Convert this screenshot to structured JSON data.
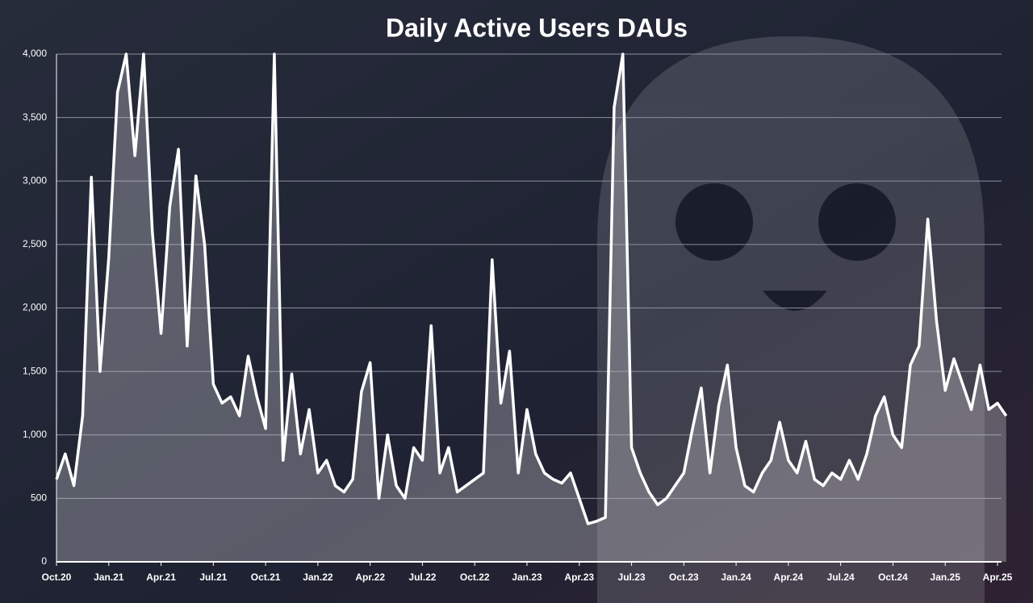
{
  "chart_data": {
    "type": "area",
    "title": "Daily Active Users DAUs",
    "categories": [
      "Oct.20",
      null,
      null,
      null,
      null,
      null,
      "Jan.21",
      null,
      null,
      null,
      null,
      null,
      "Apr.21",
      null,
      null,
      null,
      null,
      null,
      "Jul.21",
      null,
      null,
      null,
      null,
      null,
      "Oct.21",
      null,
      null,
      null,
      null,
      null,
      "Jan.22",
      null,
      null,
      null,
      null,
      null,
      "Apr.22",
      null,
      null,
      null,
      null,
      null,
      "Jul.22",
      null,
      null,
      null,
      null,
      null,
      "Oct.22",
      null,
      null,
      null,
      null,
      null,
      "Jan.23",
      null,
      null,
      null,
      null,
      null,
      "Apr.23",
      null,
      null,
      null,
      null,
      null,
      "Jul.23",
      null,
      null,
      null,
      null,
      null,
      "Oct.23",
      null,
      null,
      null,
      null,
      null,
      "Jan.24",
      null,
      null,
      null,
      null,
      null,
      "Apr.24",
      null,
      null,
      null,
      null,
      null,
      "Jul.24",
      null,
      null,
      null,
      null,
      null,
      "Oct.24",
      null,
      null,
      null,
      null,
      null,
      "Jan.25",
      null,
      null,
      null,
      null,
      null,
      "Apr.25",
      null
    ],
    "values": [
      650,
      850,
      600,
      1150,
      3030,
      1500,
      2400,
      3700,
      4000,
      3200,
      4000,
      2600,
      1800,
      2800,
      3250,
      1700,
      3040,
      2500,
      1400,
      1250,
      1300,
      1150,
      1620,
      1300,
      1050,
      4000,
      800,
      1480,
      850,
      1200,
      700,
      800,
      600,
      550,
      650,
      1340,
      1570,
      500,
      1000,
      600,
      500,
      900,
      800,
      1860,
      700,
      900,
      550,
      600,
      650,
      700,
      2380,
      1250,
      1660,
      700,
      1200,
      850,
      700,
      650,
      620,
      700,
      500,
      300,
      320,
      350,
      3580,
      4000,
      900,
      700,
      550,
      450,
      500,
      600,
      700,
      1050,
      1370,
      700,
      1230,
      1550,
      900,
      600,
      550,
      700,
      800,
      1100,
      800,
      700,
      950,
      650,
      600,
      700,
      650,
      800,
      650,
      850,
      1150,
      1300,
      1000,
      900,
      1550,
      1700,
      2700,
      1900,
      1350,
      1600,
      1400,
      1200,
      1550,
      1200,
      1250,
      1150
    ],
    "color": "#ffffff",
    "area_color": "rgba(200,200,205,0.35)",
    "ylim": [
      0,
      4000
    ],
    "yticks": [
      0,
      500,
      {
        "value": 1000,
        "label": "1,000"
      },
      {
        "value": 1500,
        "label": "1,500"
      },
      {
        "value": 2000,
        "label": "2,000"
      },
      {
        "value": 2500,
        "label": "2,500"
      },
      {
        "value": 3000,
        "label": "3,000"
      },
      {
        "value": 3500,
        "label": "3,500"
      },
      {
        "value": 4000,
        "label": "4,000"
      }
    ],
    "grid": true
  }
}
